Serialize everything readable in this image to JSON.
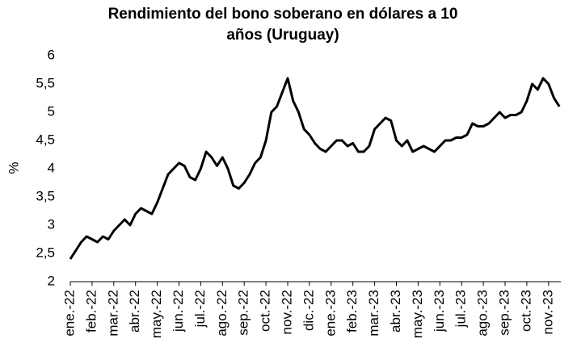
{
  "chart_data": {
    "type": "line",
    "title": [
      "Rendimiento del bono soberano en dólares a 10",
      "años (Uruguay)"
    ],
    "y_label": "%",
    "categories": [
      "ene.-22",
      null,
      null,
      null,
      "feb.-22",
      null,
      null,
      null,
      "mar.-22",
      null,
      null,
      null,
      "abr.-22",
      null,
      null,
      null,
      "may.-22",
      null,
      null,
      null,
      "jun.-22",
      null,
      null,
      null,
      "jul.-22",
      null,
      null,
      null,
      "ago.-22",
      null,
      null,
      null,
      "sep.-22",
      null,
      null,
      null,
      "oct.-22",
      null,
      null,
      null,
      "nov.-22",
      null,
      null,
      null,
      "dic.-22",
      null,
      null,
      null,
      "ene.-23",
      null,
      null,
      null,
      "feb.-23",
      null,
      null,
      null,
      "mar.-23",
      null,
      null,
      null,
      "abr.-23",
      null,
      null,
      null,
      "may.-23",
      null,
      null,
      null,
      "jun.-23",
      null,
      null,
      null,
      "jul.-23",
      null,
      null,
      null,
      "ago.-23",
      null,
      null,
      null,
      "sep.-23",
      null,
      null,
      null,
      "oct.-23",
      null,
      null,
      null,
      "nov.-23",
      null,
      null
    ],
    "series": [
      {
        "color": "#000000",
        "values": [
          2.4,
          2.55,
          2.7,
          2.8,
          2.75,
          2.7,
          2.8,
          2.75,
          2.9,
          3.0,
          3.1,
          3.0,
          3.2,
          3.3,
          3.25,
          3.2,
          3.4,
          3.65,
          3.9,
          4.0,
          4.1,
          4.05,
          3.85,
          3.8,
          4.0,
          4.3,
          4.2,
          4.05,
          4.2,
          4.0,
          3.7,
          3.65,
          3.75,
          3.9,
          4.1,
          4.2,
          4.5,
          5.0,
          5.1,
          5.35,
          5.6,
          5.2,
          5.0,
          4.7,
          4.6,
          4.45,
          4.35,
          4.3,
          4.4,
          4.5,
          4.5,
          4.4,
          4.45,
          4.3,
          4.3,
          4.4,
          4.7,
          4.8,
          4.9,
          4.85,
          4.5,
          4.4,
          4.5,
          4.3,
          4.35,
          4.4,
          4.35,
          4.3,
          4.4,
          4.5,
          4.5,
          4.55,
          4.55,
          4.6,
          4.8,
          4.75,
          4.75,
          4.8,
          4.9,
          5.0,
          4.9,
          4.95,
          4.95,
          5.0,
          5.2,
          5.5,
          5.4,
          5.6,
          5.5,
          5.25,
          5.1
        ]
      }
    ],
    "ylim": [
      2,
      6
    ],
    "yticks": [
      2,
      {
        "value": 2.5,
        "label": "2,5"
      },
      3,
      {
        "value": 3.5,
        "label": "3,5"
      },
      4,
      {
        "value": 4.5,
        "label": "4,5"
      },
      5,
      {
        "value": 5.5,
        "label": "5,5"
      },
      6
    ]
  }
}
